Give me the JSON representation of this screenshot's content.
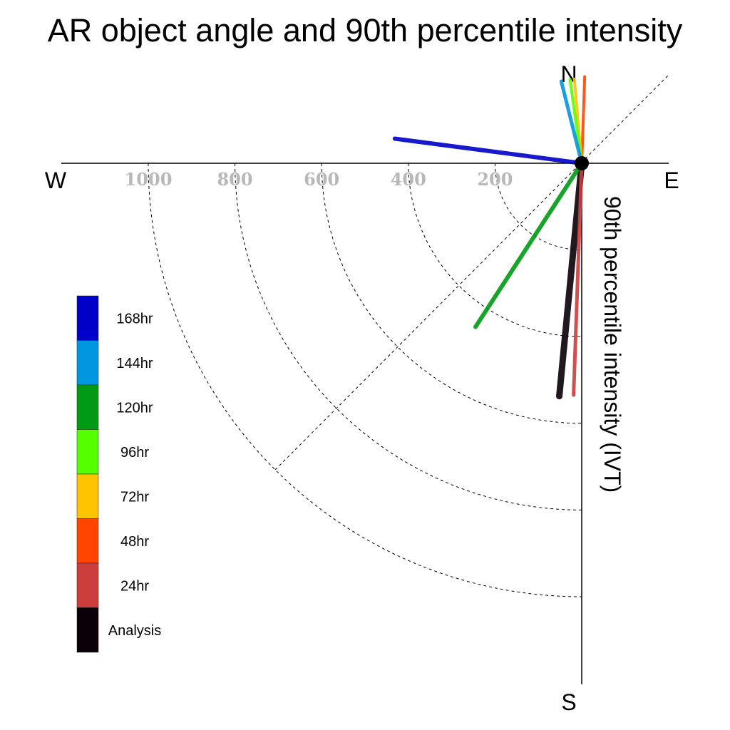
{
  "chart_data": {
    "type": "polar",
    "title": "AR object angle and 90th percentile intensity",
    "radial_axis_label": "90th percentile intensity (IVT)",
    "directions": {
      "north": "N",
      "south": "S",
      "east": "E",
      "west": "W"
    },
    "radial_ticks": [
      200,
      400,
      600,
      800,
      1000
    ],
    "radial_tick_labels": [
      "200",
      "400",
      "600",
      "800",
      "1000"
    ],
    "rmax": 1200,
    "grid": "dashed rings and 45-degree diagonal",
    "legend_placement": "left",
    "series": [
      {
        "name": "Analysis",
        "color": "#0a0008",
        "angle_deg": 185.5,
        "value": 540,
        "width": 9
      },
      {
        "name": "24hr",
        "color": "#cc3d3d",
        "angle_deg": 182.0,
        "value": 535,
        "width": 5
      },
      {
        "name": "48hr",
        "color": "#ff4500",
        "angle_deg": 2.0,
        "value": 200,
        "width": 4
      },
      {
        "name": "72hr",
        "color": "#ffc400",
        "angle_deg": 355.0,
        "value": 195,
        "width": 4
      },
      {
        "name": "96hr",
        "color": "#55ff00",
        "angle_deg": 352.0,
        "value": 195,
        "width": 4
      },
      {
        "name": "120hr",
        "color": "#009a14",
        "angle_deg": 213.0,
        "value": 450,
        "width": 6
      },
      {
        "name": "144hr",
        "color": "#0096e0",
        "angle_deg": 346.0,
        "value": 195,
        "width": 5
      },
      {
        "name": "168hr",
        "color": "#0000c8",
        "angle_deg": 277.5,
        "value": 435,
        "width": 6
      }
    ]
  },
  "legend": [
    {
      "label": "168hr",
      "color": "#0000c8"
    },
    {
      "label": "144hr",
      "color": "#0096e0"
    },
    {
      "label": "120hr",
      "color": "#009a14"
    },
    {
      "label": "96hr",
      "color": "#55ff00"
    },
    {
      "label": "72hr",
      "color": "#ffc400"
    },
    {
      "label": "48hr",
      "color": "#ff4500"
    },
    {
      "label": "24hr",
      "color": "#cc3d3d"
    },
    {
      "label": "Analysis",
      "color": "#0a0008"
    }
  ]
}
